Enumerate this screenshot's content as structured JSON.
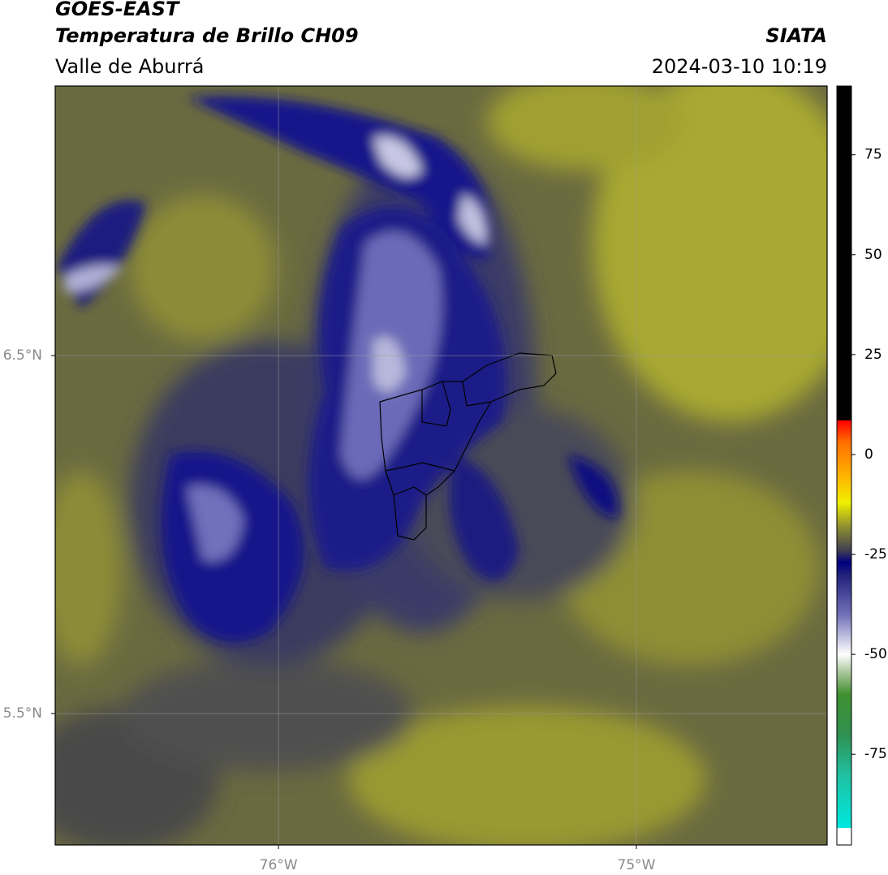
{
  "chart_data": {
    "type": "map",
    "title": "GOES-EAST",
    "subtitle": "Temperatura de Brillo CH09",
    "region": "Valle de Aburrá",
    "source": "SIATA",
    "datetime": "2024-03-10 10:19",
    "xlim": [
      -76.624,
      -74.467
    ],
    "ylim": [
      5.133,
      7.253
    ],
    "xticks": [
      {
        "value": -76,
        "label": "76°W"
      },
      {
        "value": -75,
        "label": "75°W"
      }
    ],
    "yticks": [
      {
        "value": 6.5,
        "label": "6.5°N"
      },
      {
        "value": 5.5,
        "label": "5.5°N"
      }
    ],
    "grid": true,
    "colorbar": {
      "clim": [
        -97.7,
        92.2
      ],
      "ticks": [
        75,
        50,
        25,
        0,
        -25,
        -50,
        -75
      ],
      "colors": [
        {
          "value": -97.7,
          "color": "#ffffff"
        },
        {
          "value": -93.5,
          "color": "#ffffff"
        },
        {
          "value": -93.4,
          "color": "#00e8e0"
        },
        {
          "value": -80,
          "color": "#20c0a0"
        },
        {
          "value": -70,
          "color": "#309050"
        },
        {
          "value": -60,
          "color": "#409030"
        },
        {
          "value": -55,
          "color": "#a0c090"
        },
        {
          "value": -50,
          "color": "#ffffff"
        },
        {
          "value": -40,
          "color": "#7070b8"
        },
        {
          "value": -30,
          "color": "#20207a"
        },
        {
          "value": -27,
          "color": "#000080"
        },
        {
          "value": -24,
          "color": "#404050"
        },
        {
          "value": -18,
          "color": "#909030"
        },
        {
          "value": -12,
          "color": "#f0f000"
        },
        {
          "value": -5,
          "color": "#ffb000"
        },
        {
          "value": 3,
          "color": "#ff7000"
        },
        {
          "value": 8.5,
          "color": "#ff0000"
        },
        {
          "value": 8.6,
          "color": "#000000"
        },
        {
          "value": 92.2,
          "color": "#000000"
        }
      ]
    }
  }
}
